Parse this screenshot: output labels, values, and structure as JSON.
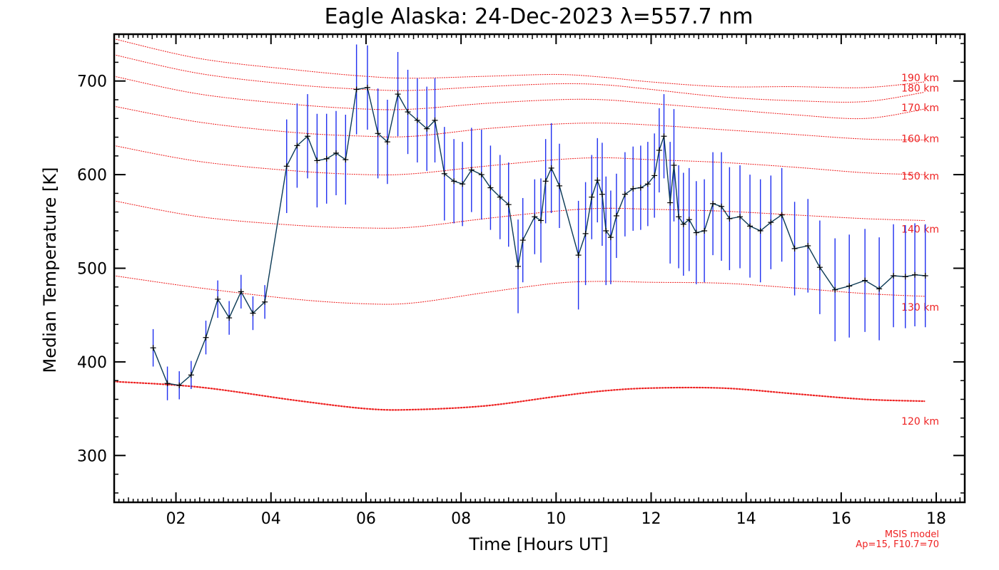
{
  "chart_data": {
    "type": "line",
    "title": "Eagle Alaska: 24-Dec-2023 λ=557.7 nm",
    "xlabel": "Time [Hours UT]",
    "ylabel": "Median Temperature [K]",
    "xlim": [
      0.7,
      18.6
    ],
    "ylim": [
      250,
      750
    ],
    "xticks": [
      2,
      4,
      6,
      8,
      10,
      12,
      14,
      16,
      18
    ],
    "xtick_labels": [
      "02",
      "04",
      "06",
      "08",
      "10",
      "12",
      "14",
      "16",
      "18"
    ],
    "yticks": [
      300,
      400,
      500,
      600,
      700
    ],
    "ytick_labels": [
      "300",
      "400",
      "500",
      "600",
      "700"
    ],
    "measured_color": "#000000",
    "errorbar_color": "#1f2ff0",
    "model_color": "#ee2222",
    "measured": {
      "x": [
        1.52,
        1.82,
        2.07,
        2.32,
        2.63,
        2.88,
        3.12,
        3.37,
        3.62,
        3.87,
        4.33,
        4.55,
        4.77,
        4.97,
        5.17,
        5.37,
        5.57,
        5.8,
        6.03,
        6.25,
        6.45,
        6.67,
        6.88,
        7.08,
        7.28,
        7.45,
        7.65,
        7.85,
        8.03,
        8.22,
        8.43,
        8.62,
        8.82,
        9.0,
        9.2,
        9.3,
        9.55,
        9.68,
        9.78,
        9.9,
        10.07,
        10.47,
        10.62,
        10.75,
        10.87,
        10.97,
        11.05,
        11.15,
        11.27,
        11.45,
        11.62,
        11.78,
        11.93,
        12.07,
        12.17,
        12.27,
        12.4,
        12.48,
        12.58,
        12.68,
        12.8,
        12.95,
        13.12,
        13.3,
        13.48,
        13.65,
        13.87,
        14.08,
        14.3,
        14.52,
        14.75,
        15.02,
        15.3,
        15.55,
        15.87,
        16.17,
        16.5,
        16.8,
        17.1,
        17.35,
        17.55,
        17.77
      ],
      "y": [
        415,
        377,
        375,
        386,
        426,
        467,
        447,
        475,
        452,
        464,
        609,
        631,
        641,
        615,
        617,
        623,
        616,
        691,
        693,
        644,
        635,
        686,
        667,
        658,
        649,
        658,
        601,
        593,
        590,
        605,
        600,
        586,
        576,
        568,
        502,
        530,
        555,
        551,
        593,
        607,
        588,
        514,
        537,
        576,
        594,
        579,
        540,
        533,
        556,
        579,
        585,
        586,
        590,
        599,
        626,
        641,
        570,
        610,
        555,
        547,
        552,
        538,
        540,
        569,
        566,
        553,
        555,
        545,
        540,
        549,
        557,
        521,
        524,
        501,
        477,
        481,
        487,
        478,
        492,
        491,
        493,
        492
      ],
      "error": [
        20,
        18,
        15,
        15,
        18,
        20,
        18,
        18,
        18,
        18,
        50,
        45,
        45,
        50,
        48,
        45,
        48,
        48,
        45,
        48,
        45,
        45,
        45,
        45,
        45,
        45,
        50,
        45,
        45,
        45,
        48,
        45,
        45,
        45,
        50,
        45,
        40,
        45,
        45,
        48,
        45,
        58,
        55,
        45,
        45,
        55,
        58,
        50,
        45,
        45,
        45,
        45,
        45,
        45,
        45,
        45,
        65,
        60,
        55,
        55,
        55,
        55,
        55,
        55,
        58,
        55,
        55,
        55,
        55,
        50,
        50,
        50,
        50,
        50,
        55,
        55,
        55,
        55,
        55,
        55,
        55,
        55
      ]
    },
    "msis": {
      "x": [
        0.7,
        2.5,
        4.5,
        6.0,
        7.0,
        8.5,
        10.0,
        11.0,
        12.0,
        13.5,
        15.0,
        16.5,
        17.75
      ],
      "curves": [
        {
          "label": "120 km",
          "y": [
            379,
            373,
            359,
            350,
            349,
            353,
            363,
            369,
            372,
            372,
            366,
            360,
            358
          ]
        },
        {
          "label": "130 km",
          "y": [
            492,
            479,
            467,
            462,
            463,
            474,
            484,
            486,
            485,
            484,
            479,
            473,
            470
          ]
        },
        {
          "label": "140 km",
          "y": [
            572,
            555,
            546,
            543,
            544,
            553,
            561,
            564,
            563,
            561,
            557,
            553,
            551
          ]
        },
        {
          "label": "150 km",
          "y": [
            631,
            614,
            604,
            600,
            601,
            609,
            616,
            618,
            616,
            613,
            608,
            602,
            600
          ]
        },
        {
          "label": "160 km",
          "y": [
            673,
            656,
            645,
            641,
            641,
            649,
            654,
            655,
            653,
            648,
            643,
            638,
            637
          ]
        },
        {
          "label": "170 km",
          "y": [
            705,
            686,
            675,
            670,
            670,
            676,
            680,
            680,
            676,
            670,
            664,
            660,
            670
          ]
        },
        {
          "label": "180 km",
          "y": [
            728,
            708,
            696,
            691,
            690,
            694,
            697,
            696,
            691,
            683,
            679,
            678,
            688
          ]
        },
        {
          "label": "190 km",
          "y": [
            745,
            724,
            712,
            705,
            703,
            705,
            707,
            704,
            699,
            694,
            694,
            693,
            699
          ]
        }
      ]
    },
    "model_note": [
      "MSIS model",
      "Ap=15, F10.7=70"
    ]
  }
}
